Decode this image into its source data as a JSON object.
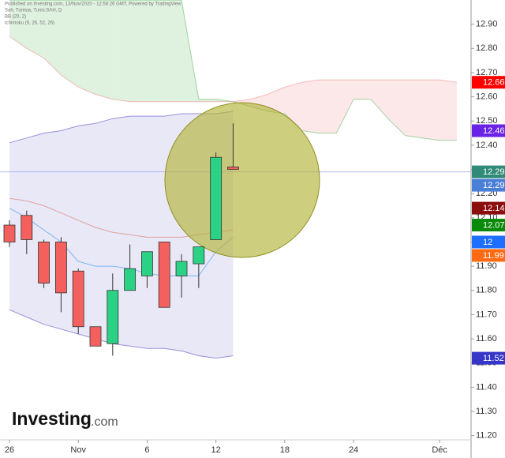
{
  "chart_data": {
    "type": "candlestick",
    "header": "Published on Investing.com, 13/Nov/2020 - 12:58:26 GMT, Powered by TradingView",
    "symbol": "Sah, Tunisia, Tunis:SAH, D",
    "indicators": [
      "BB (20, 2)",
      "Ichimoku (9, 26, 52, 26)"
    ],
    "x": [
      0,
      1,
      2,
      3,
      4,
      5,
      6,
      7,
      8,
      9,
      10,
      11,
      12,
      13
    ],
    "open": [
      12.07,
      12.11,
      12.0,
      12.0,
      11.88,
      11.65,
      11.58,
      11.8,
      11.86,
      12.0,
      11.86,
      11.91,
      12.01,
      12.31
    ],
    "high": [
      12.09,
      12.13,
      12.01,
      12.02,
      11.89,
      11.65,
      11.87,
      11.99,
      11.96,
      12.0,
      11.95,
      11.98,
      12.37,
      12.49
    ],
    "low": [
      11.98,
      11.95,
      11.81,
      11.71,
      11.62,
      11.57,
      11.53,
      11.8,
      11.81,
      11.73,
      11.77,
      11.81,
      12.01,
      12.3
    ],
    "close": [
      12.0,
      12.01,
      11.83,
      11.79,
      11.65,
      11.57,
      11.8,
      11.89,
      11.96,
      11.73,
      11.92,
      11.98,
      12.35,
      12.3
    ],
    "up_color": "#2bd184",
    "down_color": "#f4605d",
    "bands": {
      "upper": [
        12.41,
        12.43,
        12.45,
        12.46,
        12.48,
        12.49,
        12.51,
        12.52,
        12.52,
        12.52,
        12.53,
        12.53,
        12.53,
        12.54
      ],
      "middle": [
        12.18,
        12.17,
        12.15,
        12.12,
        12.09,
        12.06,
        12.04,
        12.03,
        12.02,
        12.02,
        12.02,
        12.03,
        12.04,
        12.05
      ],
      "lower": [
        11.72,
        11.69,
        11.66,
        11.64,
        11.62,
        11.6,
        11.58,
        11.57,
        11.56,
        11.56,
        11.55,
        11.53,
        11.52,
        11.53
      ],
      "line_color": "#9a90d8",
      "middle_color": "#e0a0a0",
      "fill_color": "#dcdcf2"
    },
    "baseline": {
      "values": [
        12.14,
        12.1,
        12.05,
        12.0,
        11.92,
        11.9,
        11.9,
        11.89,
        11.87,
        11.86,
        11.86,
        11.86,
        11.96,
        12.02
      ],
      "color": "#7fb8f0"
    },
    "cloud": {
      "x": [
        0,
        1,
        2,
        3,
        4,
        5,
        6,
        7,
        8,
        9,
        10,
        11,
        12,
        13,
        14,
        15,
        16,
        17,
        18,
        19,
        20,
        21,
        22,
        23,
        24,
        25,
        26
      ],
      "span_a": [
        13.0,
        13.0,
        13.0,
        13.0,
        13.0,
        13.0,
        13.0,
        13.0,
        13.0,
        13.0,
        13.0,
        12.59,
        12.59,
        12.58,
        12.56,
        12.54,
        12.53,
        12.46,
        12.45,
        12.45,
        12.59,
        12.59,
        12.51,
        12.44,
        12.43,
        12.42,
        12.42
      ],
      "span_b": [
        12.85,
        12.8,
        12.76,
        12.69,
        12.64,
        12.61,
        12.59,
        12.58,
        12.58,
        12.58,
        12.58,
        12.58,
        12.58,
        12.58,
        12.59,
        12.61,
        12.64,
        12.66,
        12.67,
        12.67,
        12.67,
        12.67,
        12.67,
        12.67,
        12.67,
        12.67,
        12.66
      ],
      "bull_color": "#4caf50",
      "bear_color": "#f08080"
    },
    "last_price": 12.29,
    "price_line_color": "#b0b8f0",
    "price_labels": [
      {
        "value": 12.66,
        "color": "#ff0000"
      },
      {
        "value": 12.46,
        "color": "#6a22e6"
      },
      {
        "value": 12.29,
        "color": "#2f8a78"
      },
      {
        "value": 12.29,
        "color": "#4a7fd8"
      },
      {
        "value": 12.14,
        "color": "#8b0d0d"
      },
      {
        "value": 12.07,
        "color": "#0a8a0a"
      },
      {
        "value": 12.0,
        "color": "#1e6fff"
      },
      {
        "value": 11.99,
        "color": "#ff6a13"
      },
      {
        "value": 11.52,
        "color": "#3636c8"
      }
    ],
    "xlim": [
      -0.55,
      26.83
    ],
    "ylim": [
      11.15,
      13.0
    ],
    "xticks": [
      {
        "value": 0,
        "label": "26"
      },
      {
        "value": 4,
        "label": "Nov"
      },
      {
        "value": 8,
        "label": "6"
      },
      {
        "value": 12,
        "label": "12"
      },
      {
        "value": 16,
        "label": "18"
      },
      {
        "value": 20,
        "label": "24"
      },
      {
        "value": 25,
        "label": "Déc"
      }
    ],
    "yticks": [
      {
        "value": 11.2,
        "label": "11.20"
      },
      {
        "value": 11.3,
        "label": "11.30"
      },
      {
        "value": 11.4,
        "label": "11.40"
      },
      {
        "value": 11.5,
        "label": "11.50"
      },
      {
        "value": 11.6,
        "label": "11.60"
      },
      {
        "value": 11.7,
        "label": "11.70"
      },
      {
        "value": 11.8,
        "label": "11.80"
      },
      {
        "value": 11.9,
        "label": "11.90"
      },
      {
        "value": 12.0,
        "label": "12.00"
      },
      {
        "value": 12.1,
        "label": "12.10"
      },
      {
        "value": 12.2,
        "label": "12.20"
      },
      {
        "value": 12.3,
        "label": "12.30"
      },
      {
        "value": 12.4,
        "label": "12.40"
      },
      {
        "value": 12.5,
        "label": "12.50"
      },
      {
        "value": 12.6,
        "label": "12.60"
      },
      {
        "value": 12.7,
        "label": "12.70"
      },
      {
        "value": 12.8,
        "label": "12.80"
      },
      {
        "value": 12.9,
        "label": "12.90"
      }
    ],
    "logo": {
      "name": "Investing",
      "suffix": ".com"
    }
  }
}
